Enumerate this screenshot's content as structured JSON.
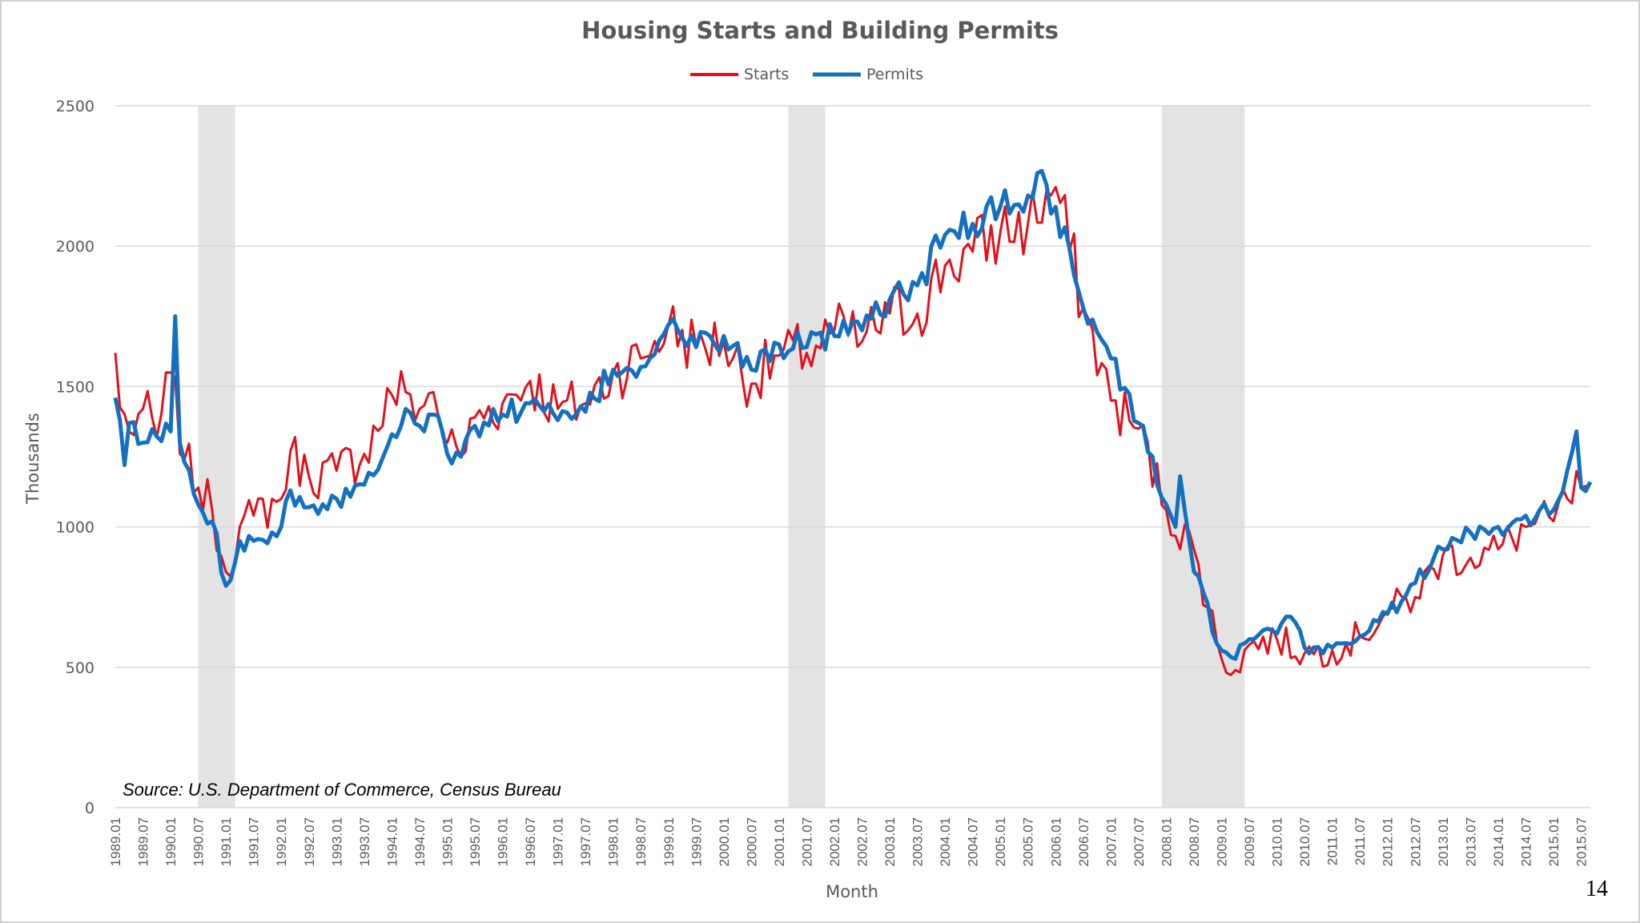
{
  "slide": {
    "source": "Source: U.S. Department of Commerce, Census Bureau",
    "page_number": "14"
  },
  "chart_data": {
    "type": "line",
    "title": "Housing Starts and Building Permits",
    "xlabel": "Month",
    "ylabel": "Thousands",
    "ylim": [
      0,
      2500
    ],
    "yticks": [
      0,
      500,
      1000,
      1500,
      2000,
      2500
    ],
    "grid": "horizontal",
    "legend": "top-center",
    "x_start": "1989.01",
    "x_end": "2015.09",
    "x_ticks": [
      "1989.01",
      "1989.07",
      "1990.01",
      "1990.07",
      "1991.01",
      "1991.07",
      "1992.01",
      "1992.07",
      "1993.01",
      "1993.07",
      "1994.01",
      "1994.07",
      "1995.01",
      "1995.07",
      "1996.01",
      "1996.07",
      "1997.01",
      "1997.07",
      "1998.01",
      "1998.07",
      "1999.01",
      "1999.07",
      "2000.01",
      "2000.07",
      "2001.01",
      "2001.07",
      "2002.01",
      "2002.07",
      "2003.01",
      "2003.07",
      "2004.01",
      "2004.07",
      "2005.01",
      "2005.07",
      "2006.01",
      "2006.07",
      "2007.01",
      "2007.07",
      "2008.01",
      "2008.07",
      "2009.01",
      "2009.07",
      "2010.01",
      "2010.07",
      "2011.01",
      "2011.07",
      "2012.01",
      "2012.07",
      "2013.01",
      "2013.07",
      "2014.01",
      "2014.07",
      "2015.01",
      "2015.07"
    ],
    "recessions": [
      {
        "start": "1990.07",
        "end": "1991.03"
      },
      {
        "start": "2001.03",
        "end": "2001.11"
      },
      {
        "start": "2007.12",
        "end": "2009.06"
      }
    ],
    "colors": {
      "starts": "#e3101a",
      "permits": "#1470c0",
      "recession": "#e3e3e3",
      "grid": "#d9d9d9"
    },
    "series": [
      {
        "name": "Starts",
        "key": "starts",
        "anchors": [
          [
            "1989.01",
            1620
          ],
          [
            "1989.02",
            1425
          ],
          [
            "1989.04",
            1340
          ],
          [
            "1989.07",
            1420
          ],
          [
            "1989.10",
            1320
          ],
          [
            "1990.01",
            1550
          ],
          [
            "1990.04",
            1240
          ],
          [
            "1990.07",
            1140
          ],
          [
            "1990.10",
            1060
          ],
          [
            "1991.01",
            840
          ],
          [
            "1991.04",
            1000
          ],
          [
            "1991.07",
            1040
          ],
          [
            "1992.01",
            1100
          ],
          [
            "1992.03",
            1270
          ],
          [
            "1992.07",
            1180
          ],
          [
            "1993.01",
            1200
          ],
          [
            "1993.07",
            1260
          ],
          [
            "1994.01",
            1470
          ],
          [
            "1994.04",
            1480
          ],
          [
            "1994.07",
            1420
          ],
          [
            "1994.10",
            1480
          ],
          [
            "1995.01",
            1300
          ],
          [
            "1995.04",
            1250
          ],
          [
            "1995.07",
            1390
          ],
          [
            "1996.01",
            1440
          ],
          [
            "1996.07",
            1520
          ],
          [
            "1997.01",
            1420
          ],
          [
            "1997.07",
            1440
          ],
          [
            "1998.01",
            1550
          ],
          [
            "1998.07",
            1600
          ],
          [
            "1999.01",
            1720
          ],
          [
            "1999.07",
            1640
          ],
          [
            "2000.01",
            1660
          ],
          [
            "2000.07",
            1510
          ],
          [
            "2001.01",
            1610
          ],
          [
            "2001.07",
            1620
          ],
          [
            "2002.01",
            1700
          ],
          [
            "2002.07",
            1660
          ],
          [
            "2003.01",
            1760
          ],
          [
            "2003.07",
            1760
          ],
          [
            "2004.01",
            1930
          ],
          [
            "2004.07",
            1980
          ],
          [
            "2005.01",
            2050
          ],
          [
            "2005.07",
            2080
          ],
          [
            "2006.01",
            2210
          ],
          [
            "2006.07",
            1780
          ],
          [
            "2007.01",
            1450
          ],
          [
            "2007.07",
            1350
          ],
          [
            "2008.01",
            1060
          ],
          [
            "2008.07",
            920
          ],
          [
            "2009.01",
            530
          ],
          [
            "2009.04",
            490
          ],
          [
            "2009.07",
            580
          ],
          [
            "2010.01",
            600
          ],
          [
            "2010.07",
            550
          ],
          [
            "2011.01",
            560
          ],
          [
            "2011.07",
            610
          ],
          [
            "2012.01",
            700
          ],
          [
            "2012.07",
            750
          ],
          [
            "2013.01",
            900
          ],
          [
            "2013.07",
            890
          ],
          [
            "2014.01",
            920
          ],
          [
            "2014.07",
            1000
          ],
          [
            "2015.01",
            1020
          ],
          [
            "2015.04",
            1100
          ],
          [
            "2015.07",
            1140
          ],
          [
            "2015.09",
            1150
          ]
        ]
      },
      {
        "name": "Permits",
        "key": "permits",
        "anchors": [
          [
            "1989.01",
            1460
          ],
          [
            "1989.03",
            1220
          ],
          [
            "1989.04",
            1370
          ],
          [
            "1989.07",
            1300
          ],
          [
            "1990.01",
            1340
          ],
          [
            "1990.02",
            1750
          ],
          [
            "1990.03",
            1300
          ],
          [
            "1990.07",
            1080
          ],
          [
            "1990.10",
            1020
          ],
          [
            "1991.01",
            790
          ],
          [
            "1991.04",
            950
          ],
          [
            "1991.07",
            950
          ],
          [
            "1992.01",
            1000
          ],
          [
            "1992.03",
            1130
          ],
          [
            "1992.07",
            1070
          ],
          [
            "1993.01",
            1100
          ],
          [
            "1993.07",
            1150
          ],
          [
            "1994.01",
            1330
          ],
          [
            "1994.04",
            1420
          ],
          [
            "1994.07",
            1360
          ],
          [
            "1994.10",
            1400
          ],
          [
            "1995.01",
            1260
          ],
          [
            "1995.04",
            1250
          ],
          [
            "1995.07",
            1360
          ],
          [
            "1996.01",
            1400
          ],
          [
            "1996.07",
            1440
          ],
          [
            "1997.01",
            1380
          ],
          [
            "1997.07",
            1410
          ],
          [
            "1998.01",
            1560
          ],
          [
            "1998.07",
            1570
          ],
          [
            "1999.01",
            1720
          ],
          [
            "1999.07",
            1640
          ],
          [
            "2000.01",
            1680
          ],
          [
            "2000.07",
            1560
          ],
          [
            "2001.01",
            1650
          ],
          [
            "2001.07",
            1640
          ],
          [
            "2002.01",
            1680
          ],
          [
            "2002.07",
            1700
          ],
          [
            "2003.01",
            1810
          ],
          [
            "2003.07",
            1860
          ],
          [
            "2004.01",
            2040
          ],
          [
            "2004.07",
            2080
          ],
          [
            "2005.01",
            2140
          ],
          [
            "2005.07",
            2180
          ],
          [
            "2005.09",
            2260
          ],
          [
            "2006.01",
            2140
          ],
          [
            "2006.07",
            1780
          ],
          [
            "2007.01",
            1600
          ],
          [
            "2007.07",
            1370
          ],
          [
            "2008.01",
            1080
          ],
          [
            "2008.03",
            1000
          ],
          [
            "2008.04",
            1180
          ],
          [
            "2008.07",
            840
          ],
          [
            "2009.01",
            560
          ],
          [
            "2009.04",
            530
          ],
          [
            "2009.07",
            600
          ],
          [
            "2010.01",
            620
          ],
          [
            "2010.04",
            680
          ],
          [
            "2010.07",
            570
          ],
          [
            "2011.01",
            570
          ],
          [
            "2011.07",
            610
          ],
          [
            "2012.01",
            690
          ],
          [
            "2012.07",
            800
          ],
          [
            "2013.01",
            920
          ],
          [
            "2013.07",
            980
          ],
          [
            "2014.01",
            1000
          ],
          [
            "2014.07",
            1040
          ],
          [
            "2015.01",
            1060
          ],
          [
            "2015.04",
            1200
          ],
          [
            "2015.06",
            1340
          ],
          [
            "2015.07",
            1140
          ],
          [
            "2015.09",
            1160
          ]
        ]
      }
    ]
  }
}
